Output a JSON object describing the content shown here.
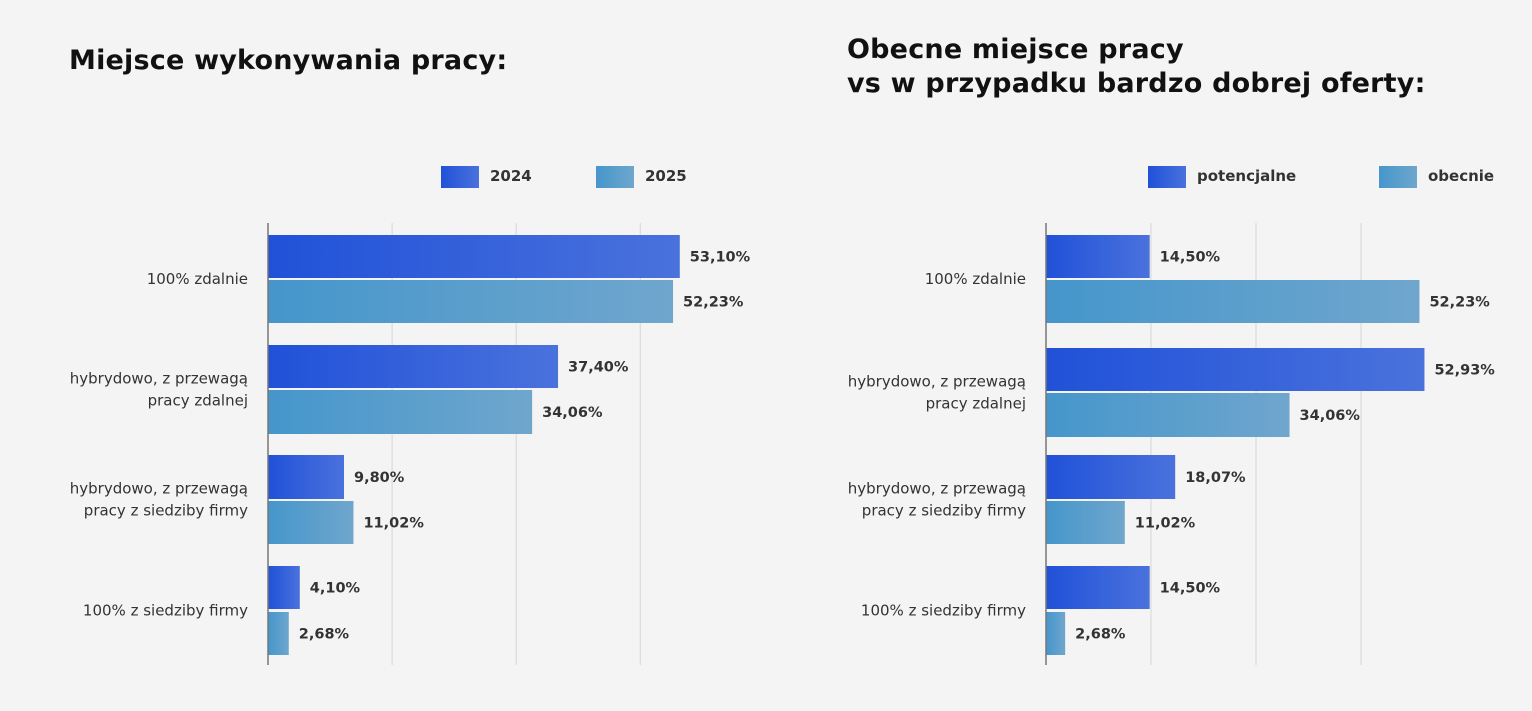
{
  "colors": {
    "series_a_start": "#2051d8",
    "series_a_end": "#4a72dd",
    "series_b_start": "#4596cc",
    "series_b_end": "#6fa6cd",
    "gridline": "#d6d6d6",
    "axis": "#777777",
    "text": "#333333"
  },
  "chart_data": [
    {
      "type": "bar",
      "orientation": "horizontal",
      "title": "Miejsce wykonywania pracy:",
      "categories": [
        [
          "100% zdalnie"
        ],
        [
          "hybrydowo, z przewagą",
          "pracy zdalnej"
        ],
        [
          "hybrydowo, z przewagą",
          "pracy z siedziby firmy"
        ],
        [
          "100% z siedziby firmy"
        ]
      ],
      "series": [
        {
          "name": "2024",
          "values": [
            53.1,
            37.4,
            9.8,
            4.1
          ]
        },
        {
          "name": "2025",
          "values": [
            52.23,
            34.06,
            11.02,
            2.68
          ]
        }
      ],
      "value_labels": [
        [
          "53,10%",
          "37,40%",
          "9,80%",
          "4,10%"
        ],
        [
          "52,23%",
          "34,06%",
          "11,02%",
          "2,68%"
        ]
      ],
      "xlim": [
        0,
        65
      ],
      "grid": true,
      "legend_position": "top"
    },
    {
      "type": "bar",
      "orientation": "horizontal",
      "title": [
        "Obecne miejsce pracy",
        "vs w przypadku bardzo dobrej oferty:"
      ],
      "categories": [
        [
          "100% zdalnie"
        ],
        [
          "hybrydowo, z przewagą",
          "pracy zdalnej"
        ],
        [
          "hybrydowo, z przewagą",
          "pracy z siedziby firmy"
        ],
        [
          "100% z siedziby firmy"
        ]
      ],
      "series": [
        {
          "name": "potencjalne",
          "values": [
            14.5,
            52.93,
            18.07,
            14.5
          ]
        },
        {
          "name": "obecnie",
          "values": [
            52.23,
            34.06,
            11.02,
            2.68
          ]
        }
      ],
      "value_labels": [
        [
          "14,50%",
          "52,93%",
          "18,07%",
          "14,50%"
        ],
        [
          "52,23%",
          "34,06%",
          "11,02%",
          "2,68%"
        ]
      ],
      "xlim": [
        0,
        60
      ],
      "grid": true,
      "legend_position": "top"
    }
  ]
}
